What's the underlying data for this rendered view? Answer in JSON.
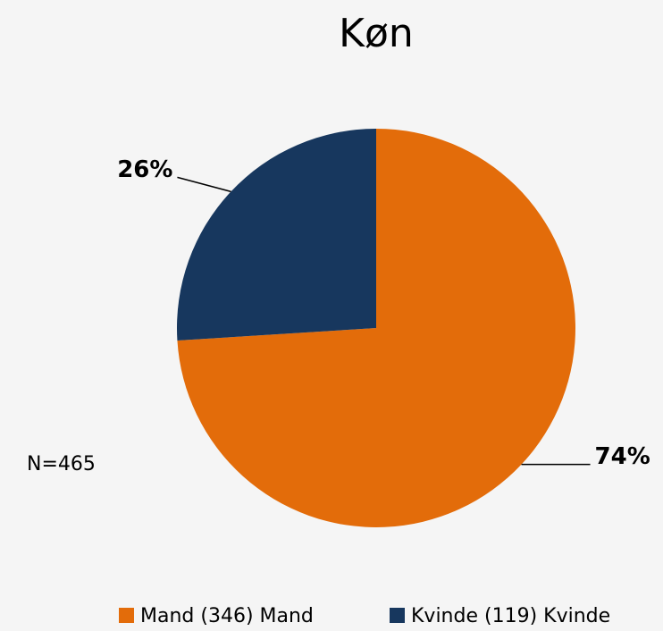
{
  "chart_data": {
    "type": "pie",
    "title": "Køn",
    "categories": [
      "Mand (346) Mand",
      "Kvinde (119) Kvinde"
    ],
    "values": [
      74,
      26
    ],
    "value_labels": [
      "74%",
      "26%"
    ],
    "colors": [
      "#e36c0a",
      "#17375e"
    ],
    "annotation": "N=465",
    "legend": "bottom"
  }
}
